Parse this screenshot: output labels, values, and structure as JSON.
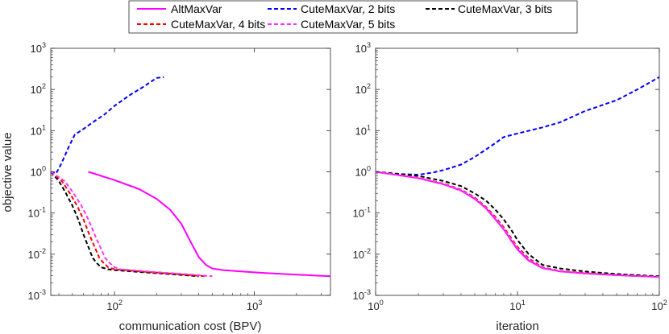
{
  "legend": [
    {
      "label": "AltMaxVar",
      "color": "#ff00ff",
      "style": "solid"
    },
    {
      "label": "CuteMaxVar, 2 bits",
      "color": "#0000ff",
      "style": "dashed"
    },
    {
      "label": "CuteMaxVar, 3 bits",
      "color": "#000000",
      "style": "dashed"
    },
    {
      "label": "CuteMaxVar, 4 bits",
      "color": "#ff0000",
      "style": "dashed"
    },
    {
      "label": "CuteMaxVar, 5 bits",
      "color": "#ff33ff",
      "style": "dashed"
    }
  ],
  "chart_data": [
    {
      "type": "line",
      "xscale": "log",
      "yscale": "log",
      "xlabel": "communication cost (BPV)",
      "ylabel": "objective value",
      "xlim": [
        35,
        3500
      ],
      "ylim": [
        0.001,
        1000
      ],
      "xticks": [
        100,
        1000
      ],
      "yticks": [
        0.001,
        0.01,
        0.1,
        1,
        10,
        100,
        1000
      ],
      "series": [
        {
          "name": "AltMaxVar",
          "color": "#ff00ff",
          "dash": false,
          "x": [
            65,
            100,
            150,
            200,
            250,
            300,
            350,
            400,
            450,
            500,
            600,
            800,
            1200,
            2000,
            3500
          ],
          "y": [
            1.0,
            0.63,
            0.38,
            0.22,
            0.12,
            0.055,
            0.02,
            0.0085,
            0.0055,
            0.0045,
            0.0041,
            0.0038,
            0.0035,
            0.0032,
            0.0029
          ]
        },
        {
          "name": "CuteMaxVar, 2 bits",
          "color": "#0000ff",
          "dash": true,
          "x": [
            35,
            38,
            40,
            43,
            47,
            52,
            60,
            70,
            85,
            100,
            130,
            160,
            200,
            225
          ],
          "y": [
            1.0,
            0.9,
            1.2,
            2.0,
            4.0,
            8.0,
            11,
            16,
            25,
            40,
            75,
            115,
            190,
            200
          ]
        },
        {
          "name": "CuteMaxVar, 3 bits",
          "color": "#000000",
          "dash": true,
          "x": [
            35,
            40,
            45,
            50,
            55,
            60,
            65,
            70,
            75,
            80,
            90,
            100,
            150,
            250,
            400
          ],
          "y": [
            1.0,
            0.6,
            0.3,
            0.15,
            0.07,
            0.03,
            0.015,
            0.008,
            0.006,
            0.0048,
            0.0043,
            0.0041,
            0.0037,
            0.0033,
            0.0029
          ]
        },
        {
          "name": "CuteMaxVar, 4 bits",
          "color": "#ff0000",
          "dash": true,
          "x": [
            35,
            42,
            48,
            54,
            60,
            66,
            72,
            78,
            84,
            90,
            100,
            120,
            170,
            280,
            450
          ],
          "y": [
            1.0,
            0.6,
            0.3,
            0.15,
            0.07,
            0.03,
            0.015,
            0.008,
            0.006,
            0.0048,
            0.0043,
            0.0041,
            0.0037,
            0.0033,
            0.0029
          ]
        },
        {
          "name": "CuteMaxVar, 5 bits",
          "color": "#ff33ff",
          "dash": true,
          "x": [
            35,
            44,
            51,
            58,
            65,
            72,
            79,
            86,
            93,
            100,
            110,
            130,
            190,
            310,
            500
          ],
          "y": [
            1.0,
            0.6,
            0.3,
            0.15,
            0.07,
            0.03,
            0.015,
            0.008,
            0.006,
            0.0048,
            0.0043,
            0.0041,
            0.0037,
            0.0033,
            0.0029
          ]
        }
      ]
    },
    {
      "type": "line",
      "xscale": "log",
      "yscale": "log",
      "xlabel": "iteration",
      "ylabel": "",
      "xlim": [
        1,
        100
      ],
      "ylim": [
        0.001,
        1000
      ],
      "xticks": [
        1,
        10,
        100
      ],
      "yticks": [
        0.001,
        0.01,
        0.1,
        1,
        10,
        100,
        1000
      ],
      "series": [
        {
          "name": "AltMaxVar",
          "color": "#ff00ff",
          "dash": false,
          "x": [
            1,
            2,
            3,
            4,
            5,
            6,
            7,
            8,
            9,
            10,
            12,
            15,
            20,
            30,
            50,
            100
          ],
          "y": [
            1.0,
            0.7,
            0.5,
            0.35,
            0.22,
            0.13,
            0.07,
            0.04,
            0.022,
            0.013,
            0.007,
            0.0046,
            0.0038,
            0.0034,
            0.0031,
            0.0028
          ]
        },
        {
          "name": "CuteMaxVar, 2 bits",
          "color": "#0000ff",
          "dash": true,
          "x": [
            1,
            1.5,
            2,
            2.5,
            3,
            4,
            5,
            6,
            7,
            8,
            10,
            15,
            20,
            30,
            50,
            70,
            100
          ],
          "y": [
            1.0,
            0.88,
            0.85,
            0.95,
            1.1,
            1.5,
            2.3,
            3.5,
            5.0,
            7.0,
            8.5,
            12,
            16,
            30,
            55,
            100,
            200
          ]
        },
        {
          "name": "CuteMaxVar, 3 bits",
          "color": "#000000",
          "dash": true,
          "x": [
            1,
            2,
            3,
            4,
            5,
            6,
            7,
            8,
            9,
            10,
            12,
            15,
            20,
            30,
            50,
            100
          ],
          "y": [
            1.0,
            0.8,
            0.6,
            0.45,
            0.3,
            0.2,
            0.12,
            0.07,
            0.04,
            0.022,
            0.01,
            0.0055,
            0.0045,
            0.0038,
            0.0033,
            0.0029
          ]
        },
        {
          "name": "CuteMaxVar, 4 bits",
          "color": "#ff0000",
          "dash": true,
          "x": [
            1,
            2,
            3,
            4,
            5,
            6,
            7,
            8,
            9,
            10,
            12,
            15,
            20,
            30,
            50,
            100
          ],
          "y": [
            1.0,
            0.72,
            0.52,
            0.37,
            0.24,
            0.14,
            0.08,
            0.045,
            0.025,
            0.015,
            0.008,
            0.0048,
            0.0039,
            0.0035,
            0.0031,
            0.0028
          ]
        },
        {
          "name": "CuteMaxVar, 5 bits",
          "color": "#ff33ff",
          "dash": true,
          "x": [
            1,
            2,
            3,
            4,
            5,
            6,
            7,
            8,
            9,
            10,
            12,
            15,
            20,
            30,
            50,
            100
          ],
          "y": [
            1.0,
            0.71,
            0.51,
            0.36,
            0.23,
            0.135,
            0.075,
            0.042,
            0.023,
            0.014,
            0.0075,
            0.0047,
            0.0038,
            0.0034,
            0.0031,
            0.0028
          ]
        }
      ]
    }
  ]
}
